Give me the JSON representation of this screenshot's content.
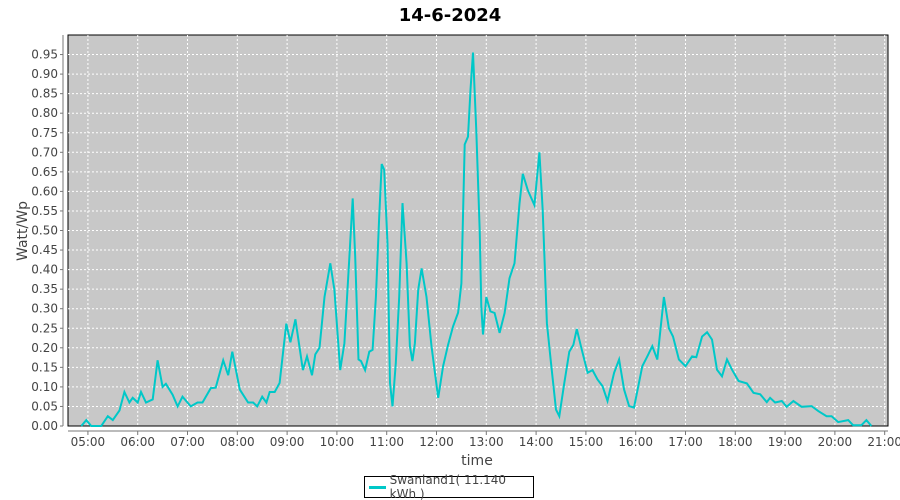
{
  "chart_data": {
    "type": "line",
    "title": "14-6-2024",
    "xlabel": "time",
    "ylabel": "Watt/Wp",
    "xlim": [
      "04:36",
      "21:04"
    ],
    "ylim": [
      0,
      1.0
    ],
    "grid": true,
    "legend_placement": "bottom",
    "background": "#c8c8c8",
    "x_ticks": [
      "05:00",
      "06:00",
      "07:00",
      "08:00",
      "09:00",
      "10:00",
      "11:00",
      "12:00",
      "13:00",
      "14:00",
      "15:00",
      "16:00",
      "17:00",
      "18:00",
      "19:00",
      "20:00",
      "21:00"
    ],
    "y_ticks": [
      "0.00",
      "0.05",
      "0.10",
      "0.15",
      "0.20",
      "0.25",
      "0.30",
      "0.35",
      "0.40",
      "0.45",
      "0.50",
      "0.55",
      "0.60",
      "0.65",
      "0.70",
      "0.75",
      "0.80",
      "0.85",
      "0.90",
      "0.95"
    ],
    "series": [
      {
        "name": "Swanland1( 11.140 kWh )",
        "color": "#00c8c8",
        "points": [
          [
            "04:52",
            0
          ],
          [
            "04:58",
            0.015
          ],
          [
            "05:04",
            0
          ],
          [
            "05:16",
            0
          ],
          [
            "05:24",
            0.025
          ],
          [
            "05:30",
            0.015
          ],
          [
            "05:38",
            0.04
          ],
          [
            "05:44",
            0.087
          ],
          [
            "05:50",
            0.06
          ],
          [
            "05:54",
            0.072
          ],
          [
            "06:00",
            0.06
          ],
          [
            "06:04",
            0.087
          ],
          [
            "06:10",
            0.06
          ],
          [
            "06:18",
            0.068
          ],
          [
            "06:24",
            0.168
          ],
          [
            "06:30",
            0.1
          ],
          [
            "06:34",
            0.108
          ],
          [
            "06:42",
            0.08
          ],
          [
            "06:48",
            0.05
          ],
          [
            "06:54",
            0.075
          ],
          [
            "07:04",
            0.05
          ],
          [
            "07:12",
            0.06
          ],
          [
            "07:18",
            0.06
          ],
          [
            "07:28",
            0.097
          ],
          [
            "07:34",
            0.098
          ],
          [
            "07:43",
            0.168
          ],
          [
            "07:49",
            0.13
          ],
          [
            "07:54",
            0.19
          ],
          [
            "08:03",
            0.093
          ],
          [
            "08:13",
            0.06
          ],
          [
            "08:19",
            0.06
          ],
          [
            "08:24",
            0.05
          ],
          [
            "08:30",
            0.075
          ],
          [
            "08:35",
            0.06
          ],
          [
            "08:39",
            0.087
          ],
          [
            "08:45",
            0.087
          ],
          [
            "08:51",
            0.11
          ],
          [
            "08:59",
            0.262
          ],
          [
            "09:04",
            0.214
          ],
          [
            "09:10",
            0.273
          ],
          [
            "09:19",
            0.143
          ],
          [
            "09:24",
            0.178
          ],
          [
            "09:30",
            0.13
          ],
          [
            "09:34",
            0.183
          ],
          [
            "09:39",
            0.2
          ],
          [
            "09:45",
            0.33
          ],
          [
            "09:52",
            0.416
          ],
          [
            "09:57",
            0.348
          ],
          [
            "10:04",
            0.143
          ],
          [
            "10:09",
            0.212
          ],
          [
            "10:15",
            0.433
          ],
          [
            "10:19",
            0.582
          ],
          [
            "10:22",
            0.433
          ],
          [
            "10:26",
            0.17
          ],
          [
            "10:29",
            0.166
          ],
          [
            "10:34",
            0.143
          ],
          [
            "10:39",
            0.19
          ],
          [
            "10:43",
            0.195
          ],
          [
            "10:47",
            0.33
          ],
          [
            "10:51",
            0.535
          ],
          [
            "10:54",
            0.67
          ],
          [
            "10:57",
            0.655
          ],
          [
            "11:01",
            0.467
          ],
          [
            "11:04",
            0.11
          ],
          [
            "11:07",
            0.05
          ],
          [
            "11:11",
            0.161
          ],
          [
            "11:15",
            0.33
          ],
          [
            "11:19",
            0.57
          ],
          [
            "11:24",
            0.416
          ],
          [
            "11:28",
            0.204
          ],
          [
            "11:31",
            0.166
          ],
          [
            "11:34",
            0.212
          ],
          [
            "11:38",
            0.348
          ],
          [
            "11:42",
            0.403
          ],
          [
            "11:48",
            0.33
          ],
          [
            "11:54",
            0.204
          ],
          [
            "12:02",
            0.072
          ],
          [
            "12:08",
            0.153
          ],
          [
            "12:14",
            0.208
          ],
          [
            "12:20",
            0.255
          ],
          [
            "12:26",
            0.29
          ],
          [
            "12:30",
            0.365
          ],
          [
            "12:34",
            0.72
          ],
          [
            "12:38",
            0.74
          ],
          [
            "12:41",
            0.86
          ],
          [
            "12:44",
            0.955
          ],
          [
            "12:48",
            0.755
          ],
          [
            "12:52",
            0.5
          ],
          [
            "12:54",
            0.306
          ],
          [
            "12:56",
            0.234
          ],
          [
            "13:00",
            0.33
          ],
          [
            "13:05",
            0.293
          ],
          [
            "13:10",
            0.289
          ],
          [
            "13:16",
            0.238
          ],
          [
            "13:22",
            0.289
          ],
          [
            "13:28",
            0.378
          ],
          [
            "13:34",
            0.416
          ],
          [
            "13:40",
            0.569
          ],
          [
            "13:44",
            0.645
          ],
          [
            "13:50",
            0.603
          ],
          [
            "13:58",
            0.565
          ],
          [
            "14:04",
            0.7
          ],
          [
            "14:08",
            0.552
          ],
          [
            "14:13",
            0.263
          ],
          [
            "14:18",
            0.161
          ],
          [
            "14:24",
            0.042
          ],
          [
            "14:28",
            0.025
          ],
          [
            "14:34",
            0.11
          ],
          [
            "14:40",
            0.19
          ],
          [
            "14:45",
            0.208
          ],
          [
            "14:49",
            0.248
          ],
          [
            "14:54",
            0.204
          ],
          [
            "15:02",
            0.136
          ],
          [
            "15:08",
            0.143
          ],
          [
            "15:14",
            0.119
          ],
          [
            "15:20",
            0.102
          ],
          [
            "15:26",
            0.064
          ],
          [
            "15:34",
            0.136
          ],
          [
            "15:40",
            0.17
          ],
          [
            "15:46",
            0.093
          ],
          [
            "15:52",
            0.051
          ],
          [
            "15:58",
            0.047
          ],
          [
            "16:08",
            0.153
          ],
          [
            "16:14",
            0.178
          ],
          [
            "16:20",
            0.204
          ],
          [
            "16:26",
            0.17
          ],
          [
            "16:34",
            0.33
          ],
          [
            "16:40",
            0.25
          ],
          [
            "16:45",
            0.229
          ],
          [
            "16:52",
            0.17
          ],
          [
            "17:00",
            0.153
          ],
          [
            "17:08",
            0.178
          ],
          [
            "17:13",
            0.176
          ],
          [
            "17:20",
            0.229
          ],
          [
            "17:26",
            0.24
          ],
          [
            "17:32",
            0.221
          ],
          [
            "17:38",
            0.144
          ],
          [
            "17:44",
            0.127
          ],
          [
            "17:50",
            0.17
          ],
          [
            "17:56",
            0.144
          ],
          [
            "18:04",
            0.115
          ],
          [
            "18:14",
            0.109
          ],
          [
            "18:22",
            0.085
          ],
          [
            "18:30",
            0.081
          ],
          [
            "18:38",
            0.061
          ],
          [
            "18:42",
            0.072
          ],
          [
            "18:48",
            0.06
          ],
          [
            "18:56",
            0.064
          ],
          [
            "19:02",
            0.049
          ],
          [
            "19:10",
            0.064
          ],
          [
            "19:20",
            0.049
          ],
          [
            "19:32",
            0.051
          ],
          [
            "19:40",
            0.038
          ],
          [
            "19:50",
            0.025
          ],
          [
            "19:56",
            0.025
          ],
          [
            "20:04",
            0.01
          ],
          [
            "20:16",
            0.015
          ],
          [
            "20:22",
            0.002
          ],
          [
            "20:32",
            0.002
          ],
          [
            "20:38",
            0.015
          ],
          [
            "20:44",
            0
          ]
        ]
      }
    ]
  }
}
